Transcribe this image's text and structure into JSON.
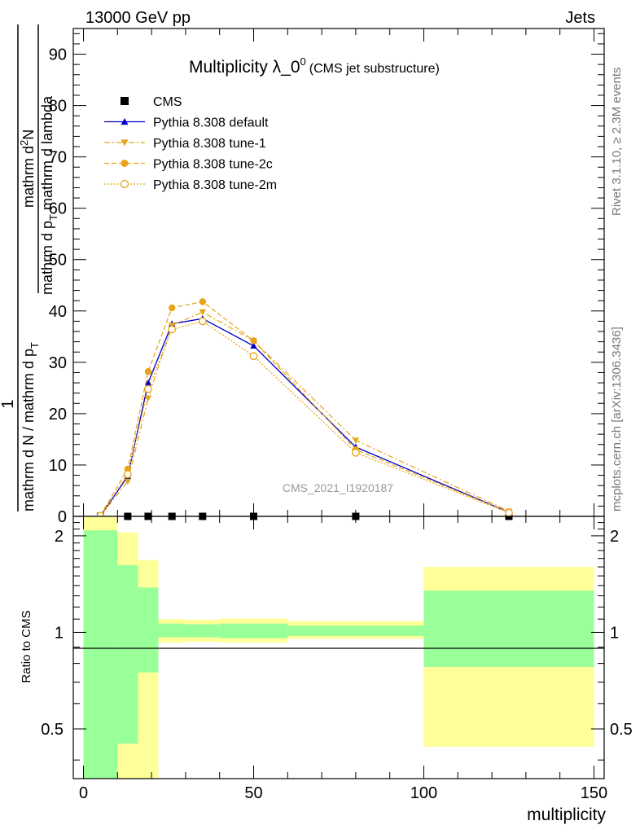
{
  "header": {
    "energy_label": "13000 GeV pp",
    "category_label": "Jets"
  },
  "side": {
    "rivet_label": "Rivet 3.1.10, ≥ 2.3M events",
    "mcplots_label": "mcplots.cern.ch [arXiv:1306.3436]"
  },
  "colors": {
    "pythia_default": "#0000cc",
    "pythia_tunes": "#e8a317",
    "band_inner": "#99ff99",
    "band_outer": "#ffff99",
    "cms": "#000000"
  },
  "chart_data": [
    {
      "type": "line",
      "title_main": "Multiplicity λ_0",
      "title_sup": "0",
      "title_sub": "(CMS jet substructure)",
      "ylabel_fraction_numerator": "1",
      "ylabel_fraction_denominator": "mathrm d N / mathrm d p",
      "ylabel_fraction_denominator_sub": "T",
      "ylabel_derivative_numerator": "mathrm d",
      "ylabel_derivative_numerator_sup": "2",
      "ylabel_derivative_numerator_tail": "N",
      "ylabel_derivative_denominator": "mathrm d p",
      "ylabel_derivative_denominator_sub": "T",
      "ylabel_derivative_denominator_tail": " mathrm d lambda",
      "watermark": "CMS_2021_I1920187",
      "xlim": [
        -3,
        153
      ],
      "ylim": [
        0,
        95
      ],
      "yticks": [
        0,
        10,
        20,
        30,
        40,
        50,
        60,
        70,
        80,
        90
      ],
      "legend_position": "top-left",
      "series": [
        {
          "name": "CMS",
          "marker": "square",
          "x": [
            5,
            13,
            19,
            26,
            35,
            50,
            80,
            125
          ],
          "y": [
            0,
            0,
            0,
            0,
            0,
            0,
            0,
            0
          ]
        },
        {
          "name": "Pythia 8.308 default",
          "marker": "triangle-up",
          "line": "solid",
          "x": [
            5,
            13,
            19,
            26,
            35,
            50,
            80,
            125
          ],
          "y": [
            0.1,
            7.8,
            26.0,
            37.5,
            38.5,
            33.2,
            13.5,
            0.8
          ]
        },
        {
          "name": "Pythia 8.308 tune-1",
          "marker": "triangle-down",
          "line": "dash-dot",
          "x": [
            5,
            13,
            19,
            26,
            35,
            50,
            80,
            125
          ],
          "y": [
            0.1,
            6.8,
            23.0,
            37.2,
            39.8,
            34.2,
            14.8,
            1.0
          ]
        },
        {
          "name": "Pythia 8.308 tune-2c",
          "marker": "circle",
          "line": "dashed",
          "x": [
            5,
            13,
            19,
            26,
            35,
            50,
            80,
            125
          ],
          "y": [
            0.2,
            9.2,
            28.2,
            40.6,
            41.8,
            34.2,
            13.0,
            0.8
          ]
        },
        {
          "name": "Pythia 8.308 tune-2m",
          "marker": "open-circle",
          "line": "dotted",
          "x": [
            5,
            13,
            19,
            26,
            35,
            50,
            80,
            125
          ],
          "y": [
            0.1,
            8.2,
            24.8,
            36.4,
            38.0,
            31.2,
            12.4,
            0.7
          ]
        }
      ]
    },
    {
      "type": "area",
      "ylabel": "Ratio to CMS",
      "xlabel": "multiplicity",
      "xlim": [
        -3,
        153
      ],
      "ylim": [
        0.35,
        2.3
      ],
      "xticks": [
        0,
        50,
        100,
        150
      ],
      "yticks": [
        0.5,
        1,
        2
      ],
      "reference_line": 1,
      "bins": [
        {
          "x0": 0,
          "x1": 10,
          "inner": [
            0.35,
            2.08
          ],
          "outer": [
            0.35,
            2.3
          ]
        },
        {
          "x0": 10,
          "x1": 16,
          "inner": [
            0.45,
            1.62
          ],
          "outer": [
            0.35,
            2.05
          ]
        },
        {
          "x0": 16,
          "x1": 22,
          "inner": [
            0.75,
            1.38
          ],
          "outer": [
            0.35,
            1.68
          ]
        },
        {
          "x0": 22,
          "x1": 30,
          "inner": [
            0.965,
            1.065
          ],
          "outer": [
            0.93,
            1.1
          ]
        },
        {
          "x0": 30,
          "x1": 40,
          "inner": [
            0.965,
            1.06
          ],
          "outer": [
            0.935,
            1.095
          ]
        },
        {
          "x0": 40,
          "x1": 60,
          "inner": [
            0.96,
            1.065
          ],
          "outer": [
            0.93,
            1.105
          ]
        },
        {
          "x0": 60,
          "x1": 100,
          "inner": [
            0.975,
            1.05
          ],
          "outer": [
            0.955,
            1.085
          ]
        },
        {
          "x0": 100,
          "x1": 150,
          "inner": [
            0.78,
            1.35
          ],
          "outer": [
            0.44,
            1.6
          ]
        }
      ]
    }
  ]
}
